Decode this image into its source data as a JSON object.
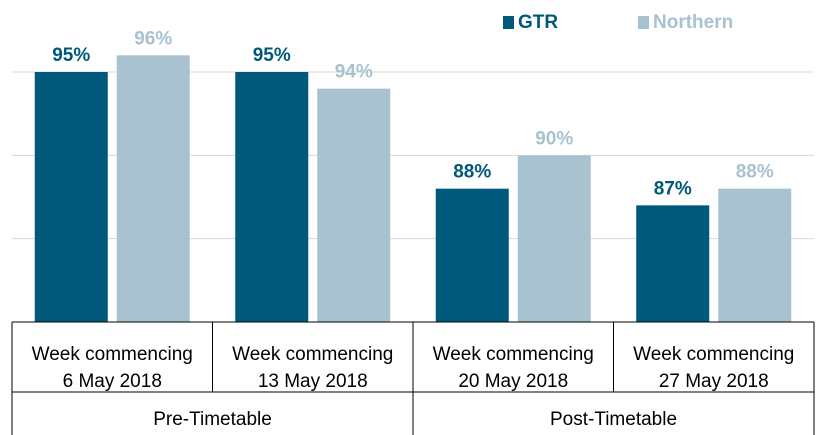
{
  "chart_data": {
    "type": "bar",
    "categories": [
      [
        "Week commencing",
        "6 May 2018"
      ],
      [
        "Week commencing",
        "13 May 2018"
      ],
      [
        "Week commencing",
        "20 May 2018"
      ],
      [
        "Week commencing",
        "27 May 2018"
      ]
    ],
    "groups": [
      "Pre-Timetable",
      "Post-Timetable"
    ],
    "series": [
      {
        "name": "GTR",
        "color": "#00587a",
        "values": [
          95,
          95,
          88,
          87
        ],
        "value_labels": [
          "95%",
          "95%",
          "88%",
          "87%"
        ]
      },
      {
        "name": "Northern",
        "color": "#a9c2d0",
        "values": [
          96,
          94,
          90,
          88
        ],
        "value_labels": [
          "96%",
          "94%",
          "90%",
          "88%"
        ]
      }
    ],
    "ylim": [
      80,
      98
    ],
    "yticks": [
      80,
      85,
      90,
      95
    ],
    "grid": true,
    "legend": "top-right"
  }
}
